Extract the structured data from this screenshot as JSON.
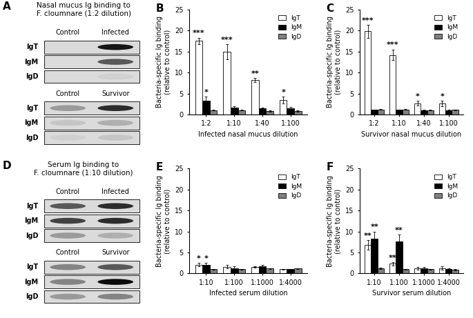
{
  "chart_data": [
    {
      "type": "blot",
      "panel": "A",
      "title": "Nasal mucus Ig binding to\nF. cloumnare (1:2 dilution)",
      "blots": [
        {
          "columns": [
            "Control",
            "Infected"
          ],
          "rows": [
            "IgT",
            "IgM",
            "IgD"
          ],
          "intensity": [
            [
              0.0,
              0.9
            ],
            [
              0.0,
              0.6
            ],
            [
              0.0,
              0.05
            ]
          ]
        },
        {
          "columns": [
            "Control",
            "Survivor"
          ],
          "rows": [
            "IgT",
            "IgM",
            "IgD"
          ],
          "intensity": [
            [
              0.3,
              0.8
            ],
            [
              0.1,
              0.2
            ],
            [
              0.05,
              0.1
            ]
          ]
        }
      ]
    },
    {
      "type": "bar",
      "panel": "B",
      "categories": [
        "1:2",
        "1:10",
        "1:40",
        "1:100"
      ],
      "x_label": "Infected nasal mucus dilution",
      "y_label": "Bacteria-specific Ig binding\n(relative to control)",
      "ylim": [
        0,
        25
      ],
      "yticks": [
        0,
        5,
        10,
        15,
        20,
        25
      ],
      "legend": "upper right",
      "series": [
        {
          "name": "IgT",
          "color": "#ffffff",
          "values": [
            17.5,
            15.0,
            8.2,
            3.5
          ],
          "errors": [
            0.8,
            1.8,
            0.5,
            0.8
          ],
          "significance": [
            "***",
            "***",
            "**",
            "*"
          ]
        },
        {
          "name": "IgM",
          "color": "#000000",
          "values": [
            3.3,
            1.7,
            1.4,
            1.5
          ],
          "errors": [
            1.0,
            0.3,
            0.3,
            0.3
          ],
          "significance": [
            "*",
            null,
            null,
            null
          ]
        },
        {
          "name": "IgD",
          "color": "#808080",
          "values": [
            1.0,
            1.0,
            0.8,
            0.8
          ],
          "errors": [
            0.1,
            0.1,
            0.1,
            0.1
          ],
          "significance": [
            null,
            null,
            null,
            null
          ]
        }
      ]
    },
    {
      "type": "bar",
      "panel": "C",
      "categories": [
        "1:2",
        "1:10",
        "1:40",
        "1:100"
      ],
      "x_label": "Survivor nasal mucus dilution",
      "y_label": "Bacteria-specific Ig binding\n(relative to control)",
      "ylim": [
        0,
        25
      ],
      "yticks": [
        0,
        5,
        10,
        15,
        20,
        25
      ],
      "legend": "upper right",
      "series": [
        {
          "name": "IgT",
          "color": "#ffffff",
          "values": [
            19.8,
            14.2,
            2.7,
            2.6
          ],
          "errors": [
            1.5,
            1.3,
            0.6,
            0.6
          ],
          "significance": [
            "***",
            "***",
            "*",
            "*"
          ]
        },
        {
          "name": "IgM",
          "color": "#000000",
          "values": [
            1.1,
            1.1,
            1.0,
            1.0
          ],
          "errors": [
            0.1,
            0.1,
            0.1,
            0.1
          ],
          "significance": [
            null,
            null,
            null,
            null
          ]
        },
        {
          "name": "IgD",
          "color": "#808080",
          "values": [
            1.2,
            1.2,
            1.0,
            1.1
          ],
          "errors": [
            0.1,
            0.1,
            0.1,
            0.1
          ],
          "significance": [
            null,
            null,
            null,
            null
          ]
        }
      ]
    },
    {
      "type": "blot",
      "panel": "D",
      "title": "Serum Ig binding to\nF. cloumnare (1:10 dilution)",
      "blots": [
        {
          "columns": [
            "Control",
            "Infected"
          ],
          "rows": [
            "IgT",
            "IgM",
            "IgD"
          ],
          "intensity": [
            [
              0.6,
              0.8
            ],
            [
              0.7,
              0.8
            ],
            [
              0.3,
              0.2
            ]
          ]
        },
        {
          "columns": [
            "Control",
            "Survivor"
          ],
          "rows": [
            "IgT",
            "IgM",
            "IgD"
          ],
          "intensity": [
            [
              0.4,
              0.6
            ],
            [
              0.4,
              0.95
            ],
            [
              0.3,
              0.4
            ]
          ]
        }
      ]
    },
    {
      "type": "bar",
      "panel": "E",
      "categories": [
        "1:10",
        "1:100",
        "1:1000",
        "1:4000"
      ],
      "x_label": "Infected serum dilution",
      "y_label": "Bacteria-specific Ig binding\n(relative to control)",
      "ylim": [
        0,
        25
      ],
      "yticks": [
        0,
        5,
        10,
        15,
        20,
        25
      ],
      "legend": "upper right",
      "series": [
        {
          "name": "IgT",
          "color": "#ffffff",
          "values": [
            2.1,
            1.6,
            1.6,
            1.0
          ],
          "errors": [
            0.4,
            0.4,
            0.2,
            0.1
          ],
          "significance": [
            "*",
            null,
            null,
            null
          ]
        },
        {
          "name": "IgM",
          "color": "#000000",
          "values": [
            2.0,
            1.3,
            1.8,
            1.0
          ],
          "errors": [
            0.5,
            0.4,
            0.3,
            0.1
          ],
          "significance": [
            "*",
            null,
            null,
            null
          ]
        },
        {
          "name": "IgD",
          "color": "#808080",
          "values": [
            1.0,
            1.0,
            1.2,
            1.2
          ],
          "errors": [
            0.1,
            0.1,
            0.1,
            0.1
          ],
          "significance": [
            null,
            null,
            null,
            null
          ]
        }
      ]
    },
    {
      "type": "bar",
      "panel": "F",
      "categories": [
        "1:10",
        "1:100",
        "1:1000",
        "1:4000"
      ],
      "x_label": "Survivor serum dilution",
      "y_label": "Bacteria-specific Ig binding\n(relative to control)",
      "ylim": [
        0,
        25
      ],
      "yticks": [
        0,
        5,
        10,
        15,
        20,
        25
      ],
      "legend": "upper right",
      "series": [
        {
          "name": "IgT",
          "color": "#ffffff",
          "values": [
            6.8,
            2.3,
            1.2,
            1.3
          ],
          "errors": [
            1.2,
            0.4,
            0.3,
            0.4
          ],
          "significance": [
            "**",
            "**",
            null,
            null
          ]
        },
        {
          "name": "IgM",
          "color": "#000000",
          "values": [
            8.3,
            7.7,
            1.3,
            1.0
          ],
          "errors": [
            1.7,
            1.6,
            0.3,
            0.2
          ],
          "significance": [
            "**",
            "**",
            null,
            null
          ]
        },
        {
          "name": "IgD",
          "color": "#808080",
          "values": [
            1.2,
            1.0,
            1.0,
            0.9
          ],
          "errors": [
            0.2,
            0.1,
            0.1,
            0.1
          ],
          "significance": [
            null,
            null,
            null,
            null
          ]
        }
      ]
    }
  ]
}
